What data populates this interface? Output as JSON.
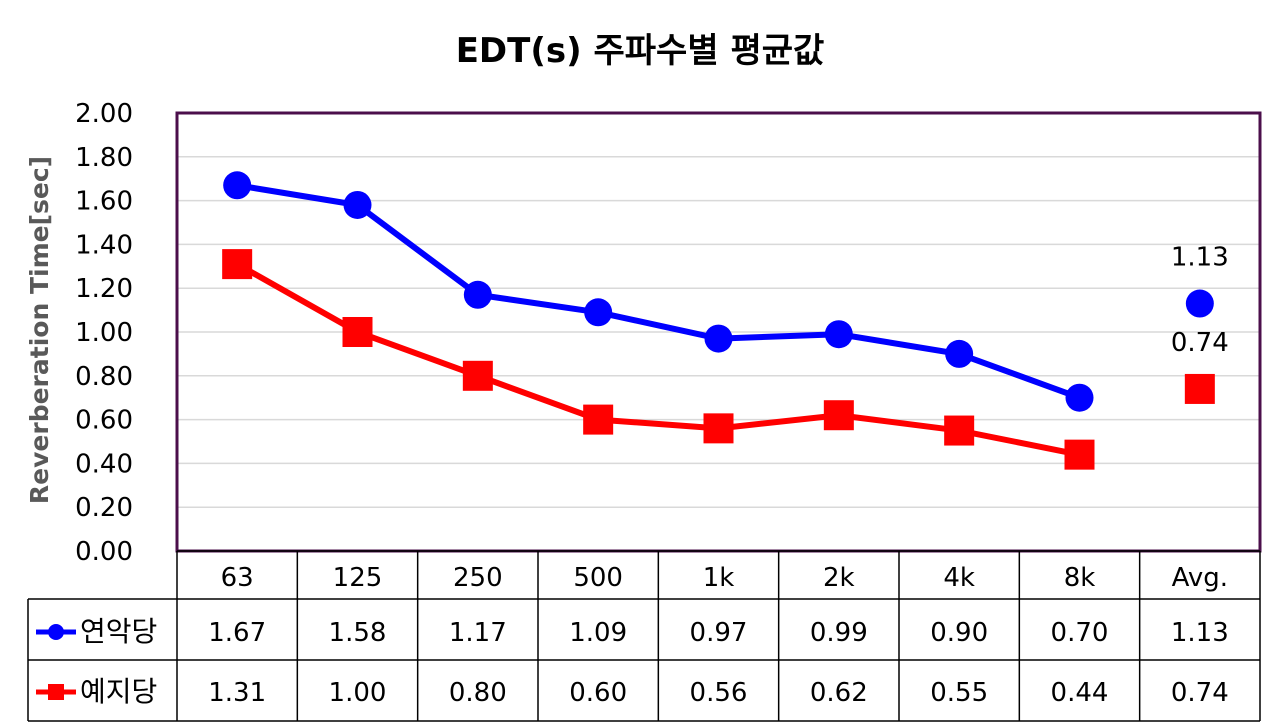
{
  "chart_data": {
    "type": "line",
    "title": "EDT(s) 주파수별 평균값",
    "ylabel": "Reverberation Time[sec]",
    "ylim": [
      0,
      2
    ],
    "ytick_labels": [
      "0.00",
      "0.20",
      "0.40",
      "0.60",
      "0.80",
      "1.00",
      "1.20",
      "1.40",
      "1.60",
      "1.80",
      "2.00"
    ],
    "categories": [
      "63",
      "125",
      "250",
      "500",
      "1k",
      "2k",
      "4k",
      "8k",
      "Avg."
    ],
    "grid": true,
    "legend_placement": "data-table-left",
    "series": [
      {
        "name": "연악당",
        "color": "#0000FF",
        "marker": "circle",
        "values": [
          1.67,
          1.58,
          1.17,
          1.09,
          0.97,
          0.99,
          0.9,
          0.7,
          1.13
        ],
        "labels": [
          "1.67",
          "1.58",
          "1.17",
          "1.09",
          "0.97",
          "0.99",
          "0.90",
          "0.70",
          "1.13"
        ]
      },
      {
        "name": "예지당",
        "color": "#FF0000",
        "marker": "square",
        "values": [
          1.31,
          1.0,
          0.8,
          0.6,
          0.56,
          0.62,
          0.55,
          0.44,
          0.74
        ],
        "labels": [
          "1.31",
          "1.00",
          "0.80",
          "0.60",
          "0.56",
          "0.62",
          "0.55",
          "0.44",
          "0.74"
        ]
      }
    ],
    "annotations": [
      "1.13",
      "0.74"
    ],
    "colors": {
      "plot_border": "#4B0F4B",
      "grid": "#D9D9D9",
      "axis_title": "#595959"
    }
  }
}
